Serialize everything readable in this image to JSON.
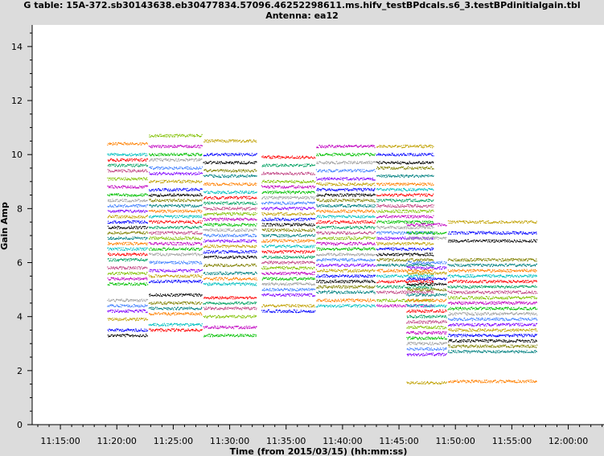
{
  "chart_data": {
    "type": "scatter",
    "title": "G table: 15A-372.sb30143638.eb30477834.57096.46252298611.ms.hifv_testBPdcals.s6_3.testBPdinitialgain.tbl",
    "subtitle": "Antenna: ea12",
    "xlabel": "Time (from 2015/03/15) (hh:mm:ss)",
    "ylabel": "Gain Amp",
    "x_ticks": [
      "11:15:00",
      "11:20:00",
      "11:25:00",
      "11:30:00",
      "11:35:00",
      "11:40:00",
      "11:45:00",
      "11:50:00",
      "11:55:00",
      "12:00:00"
    ],
    "y_ticks": [
      0,
      2,
      4,
      6,
      8,
      10,
      12,
      14
    ],
    "xlim": [
      "11:12:30",
      "12:03:10"
    ],
    "ylim": [
      0,
      14.8
    ],
    "grid": false,
    "legend": "none",
    "series_colors": [
      "#000000",
      "#ff0000",
      "#00c000",
      "#0000ff",
      "#00c0c0",
      "#c000c0",
      "#c0a000",
      "#ff8000",
      "#80c000",
      "#8000ff",
      "#008080",
      "#c04080",
      "#4080ff",
      "#808000",
      "#00a060",
      "#a0a0a0"
    ],
    "segments": [
      {
        "start": "11:19:10",
        "end": "11:22:40",
        "levels": [
          3.3,
          3.5,
          3.9,
          4.2,
          4.4,
          4.6,
          5.2,
          5.4,
          5.6,
          5.8,
          6.1,
          6.3,
          6.5,
          6.7,
          6.9,
          7.1,
          7.3,
          7.5,
          7.7,
          7.9,
          8.1,
          8.3,
          8.5,
          8.8,
          9.1,
          9.4,
          9.6,
          9.8,
          10.0,
          10.4
        ]
      },
      {
        "start": "11:22:50",
        "end": "11:27:30",
        "levels": [
          3.5,
          3.7,
          4.1,
          4.3,
          4.5,
          4.8,
          5.3,
          5.5,
          5.7,
          6.0,
          6.3,
          6.5,
          6.7,
          6.9,
          7.1,
          7.3,
          7.5,
          7.7,
          7.9,
          8.1,
          8.3,
          8.5,
          8.7,
          9.0,
          9.3,
          9.5,
          9.8,
          10.0,
          10.3,
          10.7
        ]
      },
      {
        "start": "11:27:40",
        "end": "11:32:20",
        "levels": [
          3.3,
          3.6,
          4.0,
          4.3,
          4.5,
          4.7,
          5.2,
          5.4,
          5.6,
          5.9,
          6.2,
          6.4,
          6.6,
          6.8,
          7.0,
          7.2,
          7.4,
          7.6,
          7.8,
          8.0,
          8.2,
          8.4,
          8.6,
          8.9,
          9.2,
          9.4,
          9.7,
          10.0,
          10.5
        ]
      },
      {
        "start": "11:32:50",
        "end": "11:37:30",
        "levels": [
          4.2,
          4.4,
          4.8,
          5.0,
          5.2,
          5.4,
          5.6,
          5.8,
          6.0,
          6.2,
          6.4,
          6.6,
          6.8,
          7.0,
          7.2,
          7.4,
          7.6,
          7.8,
          8.0,
          8.2,
          8.4,
          8.6,
          8.8,
          9.0,
          9.3,
          9.6,
          9.9
        ]
      },
      {
        "start": "11:37:40",
        "end": "11:42:50",
        "levels": [
          4.4,
          4.6,
          4.9,
          5.1,
          5.3,
          5.5,
          5.7,
          5.9,
          6.1,
          6.3,
          6.5,
          6.7,
          6.9,
          7.1,
          7.3,
          7.5,
          7.7,
          7.9,
          8.1,
          8.3,
          8.5,
          8.7,
          8.9,
          9.1,
          9.4,
          9.7,
          10.0,
          10.3
        ]
      },
      {
        "start": "11:43:00",
        "end": "11:48:00",
        "levels": [
          4.4,
          4.6,
          4.9,
          5.1,
          5.3,
          5.5,
          5.7,
          5.9,
          6.1,
          6.3,
          6.5,
          6.7,
          6.9,
          7.1,
          7.3,
          7.5,
          7.7,
          7.9,
          8.1,
          8.3,
          8.5,
          8.7,
          8.9,
          9.2,
          9.5,
          9.7,
          10.0,
          10.3
        ]
      },
      {
        "start": "11:45:40",
        "end": "11:49:10",
        "levels": [
          1.55,
          2.6,
          2.8,
          3.0,
          3.2,
          3.4,
          3.6,
          3.8,
          4.0,
          4.2,
          4.4,
          4.6,
          4.8,
          5.0,
          5.2,
          5.4,
          5.6,
          5.8,
          6.0,
          6.9,
          7.1,
          7.4
        ]
      },
      {
        "start": "11:49:20",
        "end": "11:57:10",
        "levels": [
          1.6,
          2.7,
          2.9,
          3.1,
          3.3,
          3.5,
          3.7,
          3.9,
          4.1,
          4.3,
          4.5,
          4.7,
          4.9,
          5.1,
          5.3,
          5.5,
          5.7,
          5.9,
          6.1,
          6.8,
          7.1,
          7.5
        ]
      }
    ]
  }
}
